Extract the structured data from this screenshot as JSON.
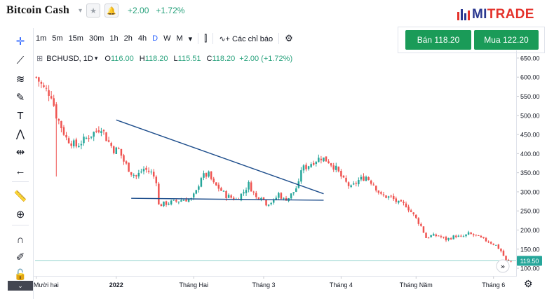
{
  "header": {
    "title": "Bitcoin Cash",
    "change": "+2.00",
    "change_pct": "+1.72%",
    "brand_main": "MI",
    "brand_accent": "TRADE",
    "icons": [
      "star-icon",
      "bell-icon",
      "chevron-down-icon"
    ]
  },
  "toolbar": {
    "timeframes": [
      "1m",
      "5m",
      "15m",
      "30m",
      "1h",
      "2h",
      "4h",
      "D",
      "W",
      "M"
    ],
    "active_timeframe": "D",
    "indicators_label": "Các chỉ báo"
  },
  "trade": {
    "sell_label": "Bán 118.20",
    "buy_label": "Mua 122.20",
    "accent": "#1a9b58"
  },
  "legend": {
    "symbol": "BCHUSD, 1D",
    "o_key": "O",
    "o_val": "116.00",
    "h_key": "H",
    "h_val": "118.20",
    "l_key": "L",
    "l_val": "115.51",
    "c_key": "C",
    "c_val": "118.20",
    "chg": "+2.00 (+1.72%)"
  },
  "left_tools": [
    "crosshair-icon",
    "trend-line-icon",
    "fib-icon",
    "brush-icon",
    "text-icon",
    "pattern-icon",
    "measure-icon",
    "back-arrow-icon",
    "ruler-icon",
    "zoom-in-icon",
    "magnet-icon",
    "lock-drawing-icon",
    "lock-icon"
  ],
  "chart_data": {
    "type": "candlestick",
    "symbol": "BCHUSD",
    "interval": "1D",
    "x_ticks": [
      {
        "label": "Tháng Mười hai",
        "index": 0
      },
      {
        "label": "2022",
        "index": 32
      },
      {
        "label": "Tháng Hai",
        "index": 63
      },
      {
        "label": "Tháng 3",
        "index": 91
      },
      {
        "label": "Tháng 4",
        "index": 122
      },
      {
        "label": "Tháng Năm",
        "index": 152
      },
      {
        "label": "Tháng 6",
        "index": 183
      }
    ],
    "y_ticks": [
      100,
      150,
      200,
      250,
      300,
      350,
      400,
      450,
      500,
      550,
      600,
      650
    ],
    "ylim": [
      80,
      670
    ],
    "last_price": 119.5,
    "up_color": "#26a69a",
    "down_color": "#ef5350",
    "trendline_color": "#1e4e8c",
    "key_points": [
      [
        0,
        600
      ],
      [
        3,
        570
      ],
      [
        6,
        555
      ],
      [
        8,
        500
      ],
      [
        10,
        470
      ],
      [
        12,
        440
      ],
      [
        16,
        420
      ],
      [
        20,
        440
      ],
      [
        24,
        460
      ],
      [
        26,
        470
      ],
      [
        28,
        440
      ],
      [
        31,
        410
      ],
      [
        33,
        410
      ],
      [
        35,
        380
      ],
      [
        38,
        350
      ],
      [
        40,
        340
      ],
      [
        43,
        360
      ],
      [
        46,
        350
      ],
      [
        48,
        330
      ],
      [
        49,
        265
      ],
      [
        52,
        270
      ],
      [
        56,
        275
      ],
      [
        59,
        280
      ],
      [
        62,
        280
      ],
      [
        64,
        300
      ],
      [
        66,
        340
      ],
      [
        69,
        345
      ],
      [
        71,
        320
      ],
      [
        73,
        310
      ],
      [
        76,
        290
      ],
      [
        80,
        280
      ],
      [
        83,
        300
      ],
      [
        85,
        320
      ],
      [
        88,
        285
      ],
      [
        90,
        290
      ],
      [
        92,
        270
      ],
      [
        95,
        275
      ],
      [
        97,
        295
      ],
      [
        99,
        280
      ],
      [
        101,
        285
      ],
      [
        103,
        300
      ],
      [
        105,
        320
      ],
      [
        106,
        360
      ],
      [
        108,
        365
      ],
      [
        111,
        380
      ],
      [
        114,
        390
      ],
      [
        117,
        380
      ],
      [
        120,
        360
      ],
      [
        123,
        330
      ],
      [
        126,
        310
      ],
      [
        129,
        330
      ],
      [
        132,
        340
      ],
      [
        135,
        320
      ],
      [
        138,
        290
      ],
      [
        142,
        285
      ],
      [
        145,
        270
      ],
      [
        148,
        265
      ],
      [
        152,
        230
      ],
      [
        154,
        210
      ],
      [
        156,
        180
      ],
      [
        158,
        185
      ],
      [
        161,
        185
      ],
      [
        164,
        175
      ],
      [
        168,
        185
      ],
      [
        170,
        180
      ],
      [
        173,
        190
      ],
      [
        176,
        185
      ],
      [
        179,
        175
      ],
      [
        181,
        170
      ],
      [
        184,
        160
      ],
      [
        186,
        145
      ],
      [
        188,
        120
      ],
      [
        190,
        118
      ]
    ],
    "trendlines": [
      {
        "from": [
          32,
          488
        ],
        "to": [
          115,
          295
        ]
      },
      {
        "from": [
          38,
          283
        ],
        "to": [
          115,
          278
        ]
      }
    ]
  }
}
